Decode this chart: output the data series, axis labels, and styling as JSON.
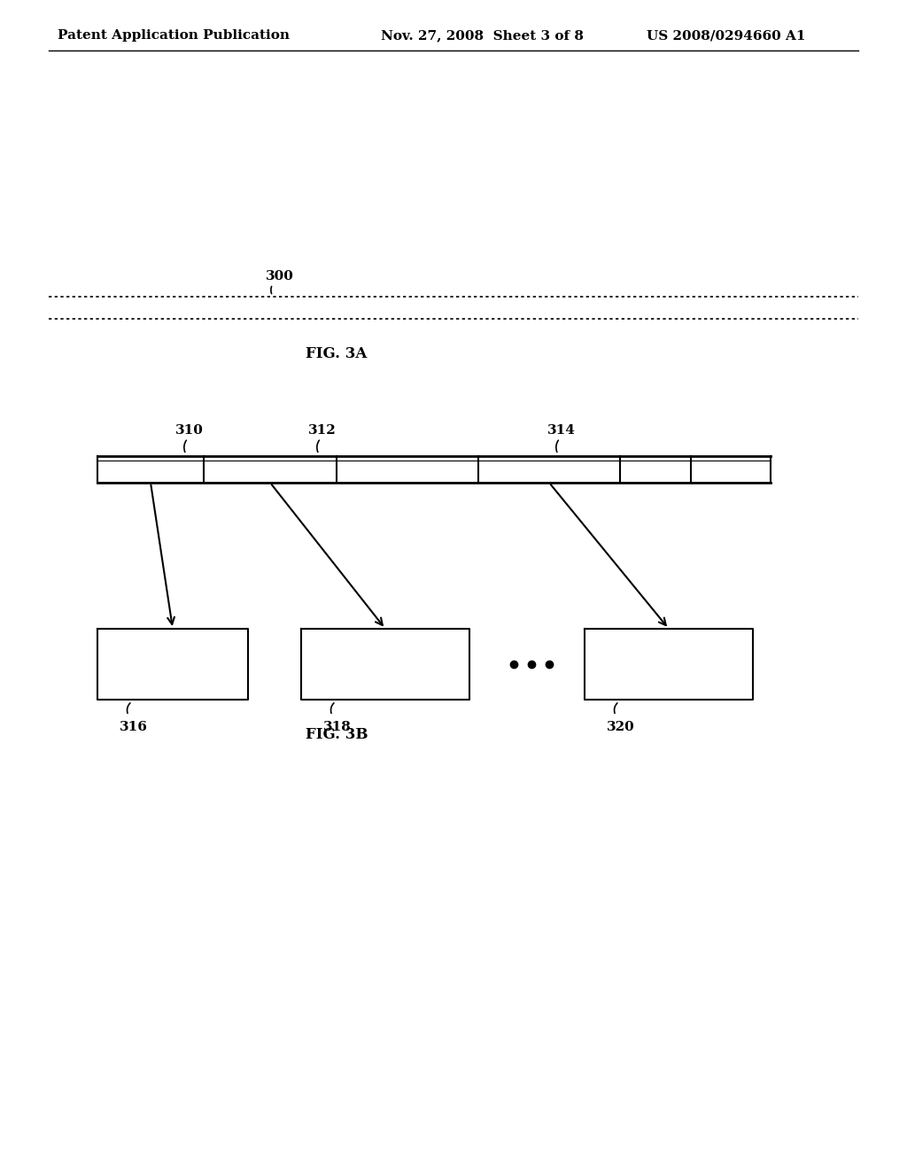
{
  "background_color": "#ffffff",
  "header_left": "Patent Application Publication",
  "header_mid": "Nov. 27, 2008  Sheet 3 of 8",
  "header_right": "US 2008/0294660 A1",
  "header_fontsize": 11,
  "fig3a_label": "FIG. 3A",
  "fig3b_label": "FIG. 3B",
  "label_300": "300",
  "label_310": "310",
  "label_312": "312",
  "label_314": "314",
  "label_316": "316",
  "label_318": "318",
  "label_320": "320",
  "line_color": "#000000",
  "dot_color": "#000000"
}
